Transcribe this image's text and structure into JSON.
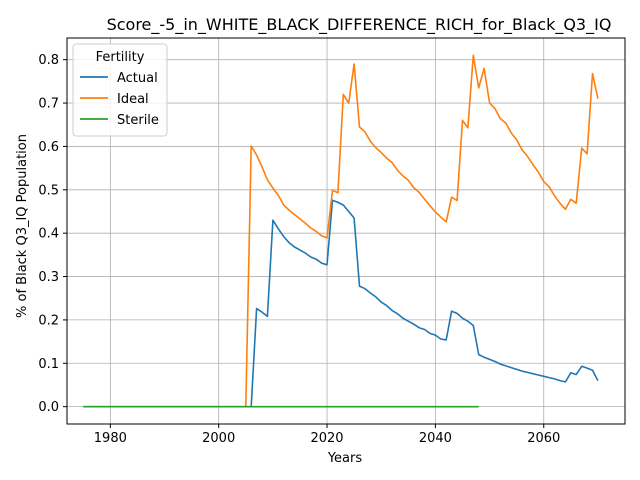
{
  "chart_data": {
    "type": "line",
    "title": "Score_-5_in_WHITE_BLACK_DIFFERENCE_RICH_for_Black_Q3_IQ",
    "xlabel": "Years",
    "ylabel": "% of Black Q3_IQ Population",
    "xlim": [
      1972,
      2075
    ],
    "ylim": [
      -0.04,
      0.85
    ],
    "xticks": [
      1980,
      2000,
      2020,
      2040,
      2060
    ],
    "xtick_labels": [
      "1980",
      "2000",
      "2020",
      "2040",
      "2060"
    ],
    "yticks": [
      0.0,
      0.1,
      0.2,
      0.3,
      0.4,
      0.5,
      0.6,
      0.7,
      0.8
    ],
    "ytick_labels": [
      "0.0",
      "0.1",
      "0.2",
      "0.3",
      "0.4",
      "0.5",
      "0.6",
      "0.7",
      "0.8"
    ],
    "grid": true,
    "legend": {
      "title": "Fertility",
      "placement": "top-left"
    },
    "series": [
      {
        "name": "Actual",
        "color": "#1f77b4",
        "x": [
          2006,
          2007,
          2008,
          2009,
          2010,
          2011,
          2012,
          2013,
          2014,
          2015,
          2016,
          2017,
          2018,
          2019,
          2020,
          2021,
          2022,
          2023,
          2024,
          2025,
          2026,
          2027,
          2028,
          2029,
          2030,
          2031,
          2032,
          2033,
          2034,
          2035,
          2036,
          2037,
          2038,
          2039,
          2040,
          2041,
          2042,
          2043,
          2044,
          2045,
          2046,
          2047,
          2048,
          2049,
          2050,
          2051,
          2052,
          2053,
          2054,
          2055,
          2056,
          2057,
          2058,
          2059,
          2060,
          2061,
          2062,
          2063,
          2064,
          2065,
          2066,
          2067,
          2068,
          2069,
          2070
        ],
        "y": [
          0.0,
          0.226,
          0.218,
          0.208,
          0.43,
          0.41,
          0.392,
          0.378,
          0.368,
          0.361,
          0.354,
          0.345,
          0.34,
          0.331,
          0.327,
          0.476,
          0.471,
          0.465,
          0.45,
          0.435,
          0.278,
          0.272,
          0.262,
          0.253,
          0.241,
          0.233,
          0.222,
          0.214,
          0.204,
          0.197,
          0.19,
          0.182,
          0.178,
          0.169,
          0.165,
          0.156,
          0.154,
          0.22,
          0.215,
          0.204,
          0.197,
          0.187,
          0.12,
          0.114,
          0.109,
          0.104,
          0.098,
          0.094,
          0.09,
          0.086,
          0.082,
          0.079,
          0.076,
          0.073,
          0.07,
          0.067,
          0.064,
          0.06,
          0.057,
          0.078,
          0.074,
          0.093,
          0.089,
          0.084,
          0.06
        ]
      },
      {
        "name": "Ideal",
        "color": "#ff7f0e",
        "x": [
          1975,
          2005,
          2006,
          2007,
          2008,
          2009,
          2010,
          2011,
          2012,
          2013,
          2014,
          2015,
          2016,
          2017,
          2018,
          2019,
          2020,
          2021,
          2022,
          2023,
          2024,
          2025,
          2026,
          2027,
          2028,
          2029,
          2030,
          2031,
          2032,
          2033,
          2034,
          2035,
          2036,
          2037,
          2038,
          2039,
          2040,
          2041,
          2042,
          2043,
          2044,
          2045,
          2046,
          2047,
          2048,
          2049,
          2050,
          2051,
          2052,
          2053,
          2054,
          2055,
          2056,
          2057,
          2058,
          2059,
          2060,
          2061,
          2062,
          2063,
          2064,
          2065,
          2066,
          2067,
          2068,
          2069,
          2070
        ],
        "y": [
          0.0,
          0.0,
          0.601,
          0.58,
          0.553,
          0.523,
          0.504,
          0.487,
          0.465,
          0.453,
          0.443,
          0.433,
          0.423,
          0.412,
          0.404,
          0.394,
          0.389,
          0.499,
          0.493,
          0.72,
          0.7,
          0.79,
          0.645,
          0.633,
          0.612,
          0.597,
          0.586,
          0.573,
          0.563,
          0.545,
          0.532,
          0.522,
          0.505,
          0.494,
          0.478,
          0.463,
          0.449,
          0.437,
          0.426,
          0.483,
          0.475,
          0.66,
          0.643,
          0.81,
          0.735,
          0.78,
          0.7,
          0.687,
          0.664,
          0.654,
          0.631,
          0.615,
          0.592,
          0.577,
          0.558,
          0.541,
          0.519,
          0.507,
          0.486,
          0.469,
          0.455,
          0.478,
          0.469,
          0.596,
          0.583,
          0.768,
          0.71
        ]
      },
      {
        "name": "Sterile",
        "color": "#2ca02c",
        "x": [
          1975,
          2048
        ],
        "y": [
          0.0,
          0.0
        ]
      }
    ]
  }
}
